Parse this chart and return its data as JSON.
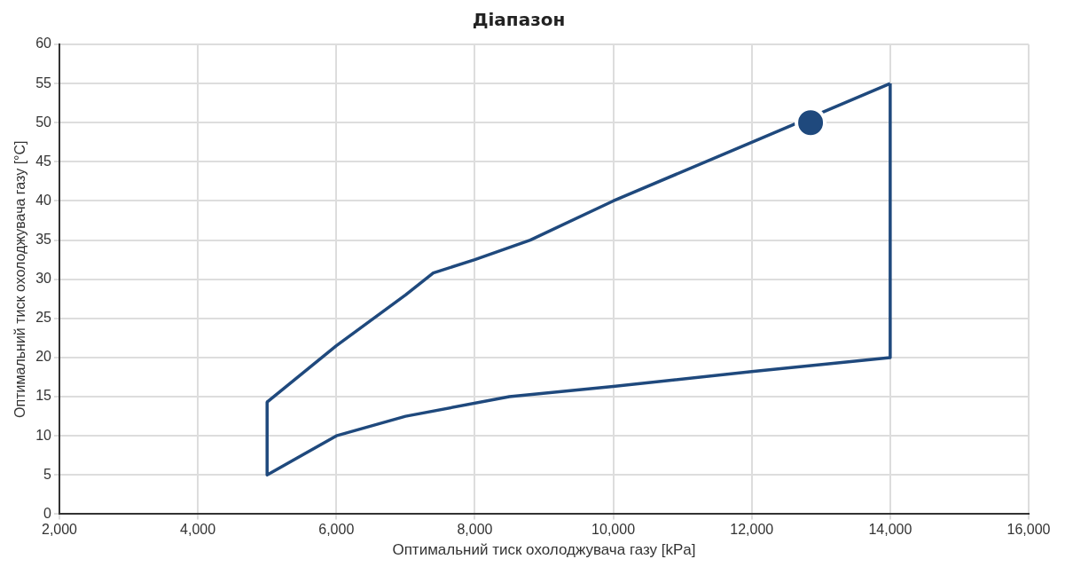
{
  "chart_data": {
    "type": "line",
    "title": "Діапазон",
    "xlabel": "Оптимальний тиск охолоджувача газу [kPa]",
    "ylabel": "Оптимальний тиск охолоджувача газу [°C]",
    "series": [
      {
        "color": "#1f497d",
        "x": [
          5000,
          5000,
          6000,
          7000,
          8500,
          10000,
          12000,
          14000,
          14000
        ],
        "values": [
          14.3,
          5,
          10,
          12.5,
          15,
          16.3,
          18.2,
          20,
          55
        ]
      },
      {
        "color": "#1f497d",
        "x": [
          5000,
          6000,
          7000,
          7400,
          8000,
          8800,
          10000,
          12000,
          14000
        ],
        "values": [
          14.3,
          21.5,
          28,
          30.8,
          32.5,
          35,
          40,
          47.5,
          55
        ]
      },
      {
        "type": "scatter",
        "color": "#1f497d",
        "marker": "circle",
        "x": [
          12850
        ],
        "values": [
          50
        ]
      }
    ],
    "xlim": [
      2000,
      16000
    ],
    "xticks": [
      {
        "value": 2000,
        "label": "2,000"
      },
      {
        "value": 4000,
        "label": "4,000"
      },
      {
        "value": 6000,
        "label": "6,000"
      },
      {
        "value": 8000,
        "label": "8,000"
      },
      {
        "value": 10000,
        "label": "10,000"
      },
      {
        "value": 12000,
        "label": "12,000"
      },
      {
        "value": 14000,
        "label": "14,000"
      },
      {
        "value": 16000,
        "label": "16,000"
      }
    ],
    "ylim": [
      0,
      60
    ],
    "yticks": [
      0,
      5,
      10,
      15,
      20,
      25,
      30,
      35,
      40,
      45,
      50,
      55,
      60
    ],
    "grid": true,
    "legend": false
  }
}
